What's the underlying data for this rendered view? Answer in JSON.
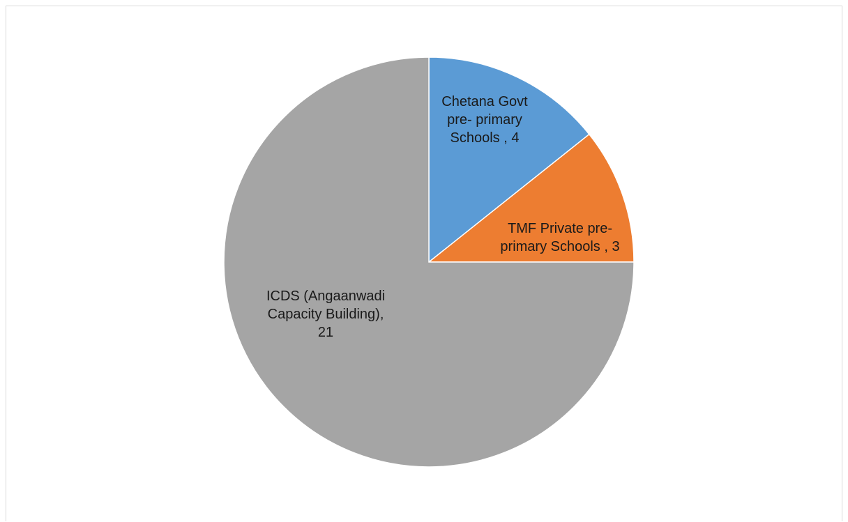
{
  "chart_data": {
    "type": "pie",
    "slices": [
      {
        "label": "Chetana Govt pre- primary Schools",
        "value": 4,
        "color": "#5b9bd5",
        "label_lines": [
          "Chetana Govt",
          "pre-  primary",
          "Schools , 4"
        ]
      },
      {
        "label": "TMF Private pre-primary Schools",
        "value": 3,
        "color": "#ed7d31",
        "label_lines": [
          "TMF Private pre-",
          "primary Schools , 3"
        ]
      },
      {
        "label": "ICDS (Angaanwadi Capacity Building)",
        "value": 21,
        "color": "#a5a5a5",
        "label_lines": [
          "ICDS (Angaanwadi",
          "Capacity Building),",
          "21"
        ]
      }
    ],
    "start_angle_deg": 0,
    "direction": "clockwise",
    "legend": "none"
  }
}
